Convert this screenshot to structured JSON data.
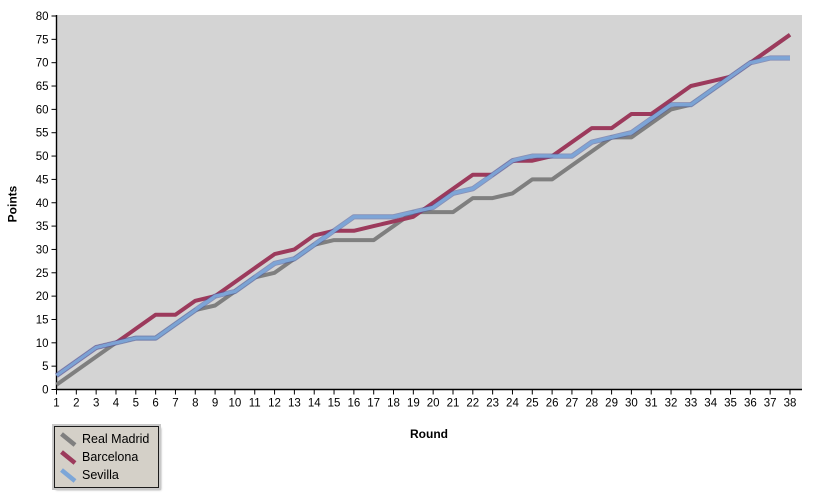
{
  "chart_data": {
    "type": "line",
    "title": "",
    "xlabel": "Round",
    "ylabel": "Points",
    "ylim": [
      0,
      80
    ],
    "xlim": [
      1,
      38
    ],
    "y_tick_step": 5,
    "grid": false,
    "legend_position": "bottom-left",
    "plot_background": "#d4d4d4",
    "axis_color": "#000000",
    "x": [
      1,
      2,
      3,
      4,
      5,
      6,
      7,
      8,
      9,
      10,
      11,
      12,
      13,
      14,
      15,
      16,
      17,
      18,
      19,
      20,
      21,
      22,
      23,
      24,
      25,
      26,
      27,
      28,
      29,
      30,
      31,
      32,
      33,
      34,
      35,
      36,
      37,
      38
    ],
    "series": [
      {
        "name": "Real Madrid",
        "color": "#7f7f7f",
        "values": [
          1,
          4,
          7,
          10,
          11,
          11,
          14,
          17,
          18,
          21,
          24,
          25,
          28,
          31,
          32,
          32,
          32,
          35,
          38,
          38,
          38,
          41,
          41,
          42,
          45,
          45,
          48,
          51,
          54,
          54,
          57,
          60,
          61,
          64,
          67,
          70,
          73,
          76
        ]
      },
      {
        "name": "Barcelona",
        "color": "#9c3a5c",
        "values": [
          3,
          6,
          9,
          10,
          13,
          16,
          16,
          19,
          20,
          23,
          26,
          29,
          30,
          33,
          34,
          34,
          35,
          36,
          37,
          40,
          43,
          46,
          46,
          49,
          49,
          50,
          53,
          56,
          56,
          59,
          59,
          62,
          65,
          66,
          67,
          70,
          73,
          76
        ]
      },
      {
        "name": "Sevilla",
        "color": "#7ca6d8",
        "edge_color": "#4a5a9e",
        "values": [
          3,
          6,
          9,
          10,
          11,
          11,
          14,
          17,
          20,
          21,
          24,
          27,
          28,
          31,
          34,
          37,
          37,
          37,
          38,
          39,
          42,
          43,
          46,
          49,
          50,
          50,
          50,
          53,
          54,
          55,
          58,
          61,
          61,
          64,
          67,
          70,
          71,
          71
        ]
      }
    ]
  }
}
